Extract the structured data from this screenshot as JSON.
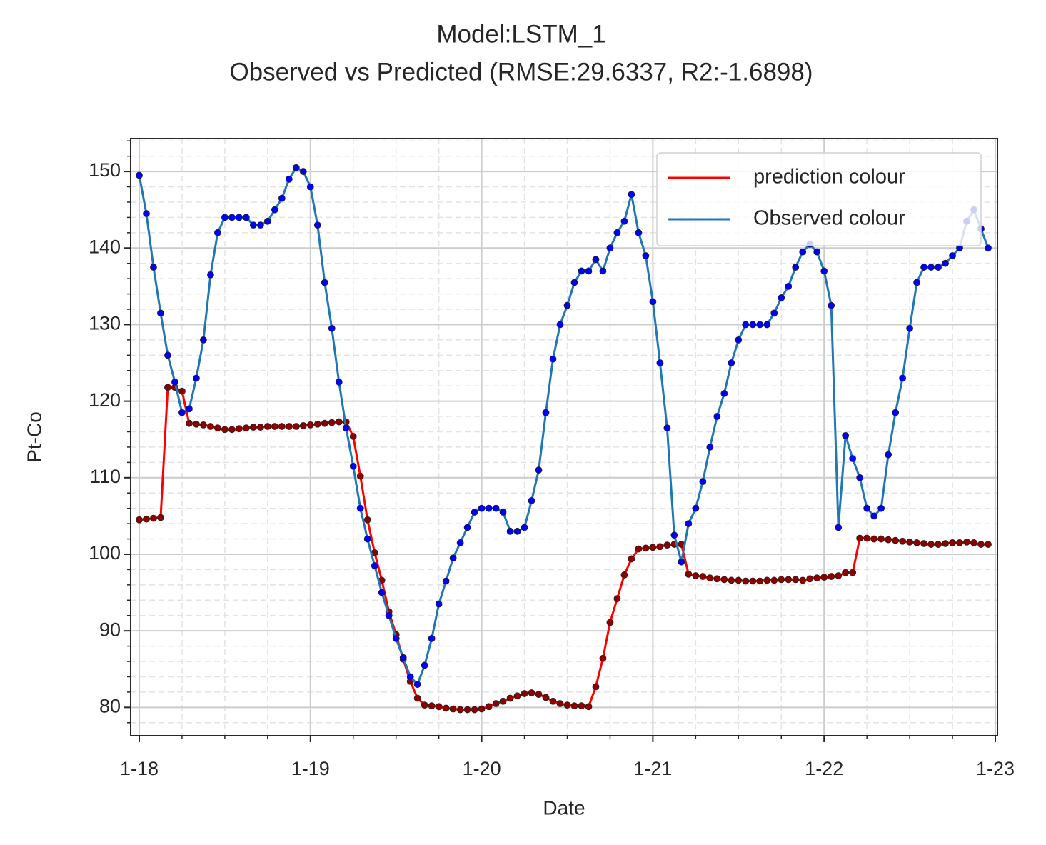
{
  "chart_data": {
    "type": "line",
    "title": "Model:LSTM_1",
    "subtitle": "Observed vs Predicted (RMSE:29.6337, R2:-1.6898)",
    "x_label": "Date",
    "y_label": "Pt-Co",
    "x": [
      0,
      0.5,
      1,
      1.5,
      2,
      2.5,
      3,
      3.5,
      4,
      4.5,
      5,
      5.5,
      6,
      6.5,
      7,
      7.5,
      8,
      8.5,
      9,
      9.5,
      10,
      10.5,
      11,
      11.5,
      12,
      12.5,
      13,
      13.5,
      14,
      14.5,
      15,
      15.5,
      16,
      16.5,
      17,
      17.5,
      18,
      18.5,
      19,
      19.5,
      20,
      20.5,
      21,
      21.5,
      22,
      22.5,
      23,
      23.5,
      24,
      24.5,
      25,
      25.5,
      26,
      26.5,
      27,
      27.5,
      28,
      28.5,
      29,
      29.5,
      30,
      30.5,
      31,
      31.5,
      32,
      32.5,
      33,
      33.5,
      34,
      34.5,
      35,
      35.5,
      36,
      36.5,
      37,
      37.5,
      38,
      38.5,
      39,
      39.5,
      40,
      40.5,
      41,
      41.5,
      42,
      42.5,
      43,
      43.5,
      44,
      44.5,
      45,
      45.5,
      46,
      46.5,
      47,
      47.5,
      48,
      48.5,
      49,
      49.5,
      50,
      50.5,
      51,
      51.5,
      52,
      52.5,
      53,
      53.5,
      54,
      54.5,
      55,
      55.5,
      56,
      56.5,
      57,
      57.5,
      58,
      58.5,
      59,
      59.5
    ],
    "series": [
      {
        "name": "prediction colour",
        "color": "#ff0000",
        "marker_color": "#8b0000",
        "values": [
          104.5,
          104.6,
          104.7,
          104.8,
          121.8,
          121.8,
          121.3,
          117.1,
          117,
          116.9,
          116.7,
          116.5,
          116.3,
          116.3,
          116.4,
          116.5,
          116.6,
          116.6,
          116.7,
          116.7,
          116.7,
          116.7,
          116.7,
          116.8,
          116.9,
          117,
          117.1,
          117.2,
          117.3,
          117.3,
          115.4,
          110.2,
          104.5,
          100.2,
          96.6,
          92.5,
          89.5,
          86.3,
          83.4,
          81.2,
          80.3,
          80.2,
          80.1,
          79.9,
          79.8,
          79.7,
          79.7,
          79.7,
          79.8,
          80.1,
          80.5,
          80.8,
          81.2,
          81.5,
          81.8,
          81.9,
          81.7,
          81.3,
          80.8,
          80.5,
          80.3,
          80.2,
          80.2,
          80.1,
          82.7,
          86.4,
          91.1,
          94.2,
          97.3,
          99.4,
          100.7,
          100.8,
          100.9,
          101,
          101.2,
          101.3,
          101.3,
          97.4,
          97.2,
          97.1,
          96.9,
          96.8,
          96.7,
          96.6,
          96.6,
          96.5,
          96.5,
          96.5,
          96.6,
          96.6,
          96.7,
          96.7,
          96.7,
          96.6,
          96.8,
          96.9,
          97,
          97.1,
          97.2,
          97.6,
          97.6,
          102.1,
          102.1,
          102,
          102,
          101.9,
          101.8,
          101.7,
          101.6,
          101.5,
          101.4,
          101.3,
          101.3,
          101.4,
          101.5,
          101.5,
          101.6,
          101.5,
          101.3,
          101.3
        ]
      },
      {
        "name": "Observed colour",
        "color": "#1f77b4",
        "marker_color": "#0000ff",
        "values": [
          149.5,
          144.5,
          137.5,
          131.5,
          126,
          122.5,
          118.5,
          119,
          123,
          128,
          136.5,
          142,
          144,
          144,
          144,
          144,
          143,
          143,
          143.5,
          145,
          146.5,
          149,
          150.5,
          150,
          148,
          143,
          135.5,
          129.5,
          122.5,
          116.5,
          111.5,
          106,
          102,
          98.5,
          95,
          92,
          89,
          86.5,
          84,
          83,
          85.5,
          89,
          93.5,
          96.5,
          99.5,
          101.5,
          103.5,
          105.5,
          106,
          106,
          106,
          105.5,
          103,
          103,
          103.5,
          107,
          111,
          118.5,
          125.5,
          130,
          132.5,
          135.5,
          137,
          137,
          138.5,
          137,
          140,
          142,
          143.5,
          147,
          142,
          139,
          133,
          125,
          116.5,
          102.5,
          99,
          104,
          106,
          109.5,
          114,
          118,
          121,
          125,
          128,
          130,
          130,
          130,
          130,
          131.5,
          133.5,
          135,
          137.5,
          139.5,
          140.5,
          139.5,
          137,
          132.5,
          103.5,
          115.5,
          112.5,
          110,
          106,
          105,
          106,
          113,
          118.5,
          123,
          129.5,
          135.5,
          137.5,
          137.5,
          137.5,
          138,
          139,
          140,
          143.5,
          145,
          142.5,
          140
        ]
      }
    ],
    "xlim": [
      -0.6,
      60.15
    ],
    "ylim": [
      76.3,
      154.3
    ],
    "xticks": [
      {
        "value": 0,
        "label": "1-18"
      },
      {
        "value": 12,
        "label": "1-19"
      },
      {
        "value": 24,
        "label": "1-20"
      },
      {
        "value": 36,
        "label": "1-21"
      },
      {
        "value": 48,
        "label": "1-22"
      },
      {
        "value": 60,
        "label": "1-23"
      }
    ],
    "yticks": [
      80,
      90,
      100,
      110,
      120,
      130,
      140,
      150
    ],
    "xminorticks": [
      3,
      6,
      9,
      15,
      18,
      21,
      27,
      30,
      33,
      39,
      42,
      45,
      51,
      54,
      57
    ],
    "yminorticks": [
      78,
      82,
      84,
      86,
      88,
      92,
      94,
      96,
      98,
      102,
      104,
      106,
      108,
      112,
      114,
      116,
      118,
      122,
      124,
      126,
      128,
      132,
      134,
      136,
      138,
      142,
      144,
      146,
      148,
      152,
      154
    ],
    "grid": true,
    "legend": "upper right"
  }
}
